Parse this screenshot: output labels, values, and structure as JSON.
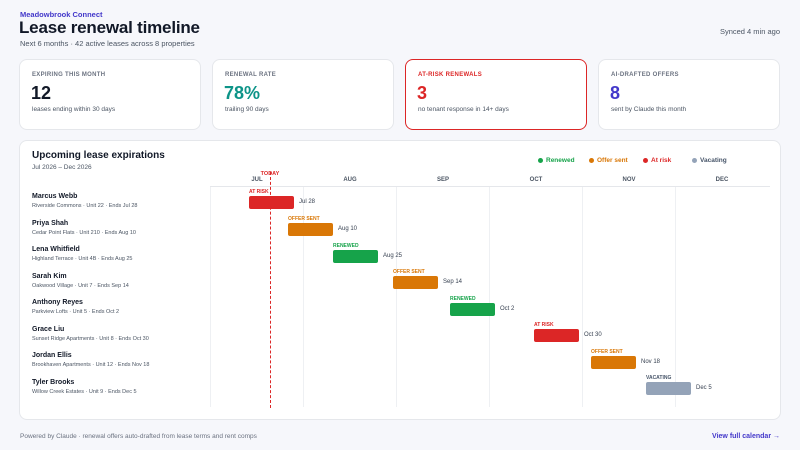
{
  "header": {
    "brand": "Meadowbrook Connect",
    "title": "Lease renewal timeline",
    "subtitle": "Next 6 months · 42 active leases across 8 properties",
    "synced": "Synced 4 min ago"
  },
  "kpis": [
    {
      "label": "EXPIRING THIS MONTH",
      "value": "12",
      "caption": "leases ending within 30 days",
      "color": "#111827"
    },
    {
      "label": "RENEWAL RATE",
      "value": "78%",
      "caption": "trailing 90 days",
      "color": "#0d9488"
    },
    {
      "label": "AT-RISK RENEWALS",
      "value": "3",
      "caption": "no tenant response in 14+ days",
      "color": "#dc2626"
    },
    {
      "label": "AI-DRAFTED OFFERS",
      "value": "8",
      "caption": "sent by Claude this month",
      "color": "#4338ca"
    }
  ],
  "timeline": {
    "title": "Upcoming lease expirations",
    "subtitle": "Jul 2026 – Dec 2026",
    "today_label": "TODAY",
    "months": [
      "JUL",
      "AUG",
      "SEP",
      "OCT",
      "NOV",
      "DEC"
    ],
    "legend": [
      {
        "label": "Renewed",
        "color": "#16a34a"
      },
      {
        "label": "Offer sent",
        "color": "#d97706"
      },
      {
        "label": "At risk",
        "color": "#dc2626"
      },
      {
        "label": "Vacating",
        "color": "#94a3b8"
      }
    ],
    "rows": [
      {
        "name": "Marcus Webb",
        "detail": "Riverside Commons · Unit 22 · Ends Jul 28",
        "status": "AT RISK",
        "color": "#dc2626",
        "end_label": "Jul 28"
      },
      {
        "name": "Priya Shah",
        "detail": "Cedar Point Flats · Unit 210 · Ends Aug 10",
        "status": "OFFER SENT",
        "color": "#d97706",
        "end_label": "Aug 10"
      },
      {
        "name": "Lena Whitfield",
        "detail": "Highland Terrace · Unit 4B · Ends Aug 25",
        "status": "RENEWED",
        "color": "#16a34a",
        "end_label": "Aug 25"
      },
      {
        "name": "Sarah Kim",
        "detail": "Oakwood Village · Unit 7 · Ends Sep 14",
        "status": "OFFER SENT",
        "color": "#d97706",
        "end_label": "Sep 14"
      },
      {
        "name": "Anthony Reyes",
        "detail": "Parkview Lofts · Unit 5 · Ends Oct 2",
        "status": "RENEWED",
        "color": "#16a34a",
        "end_label": "Oct 2"
      },
      {
        "name": "Grace Liu",
        "detail": "Sunset Ridge Apartments · Unit 8 · Ends Oct 30",
        "status": "AT RISK",
        "color": "#dc2626",
        "end_label": "Oct 30"
      },
      {
        "name": "Jordan Ellis",
        "detail": "Brookhaven Apartments · Unit 12 · Ends Nov 18",
        "status": "OFFER SENT",
        "color": "#d97706",
        "end_label": "Nov 18"
      },
      {
        "name": "Tyler Brooks",
        "detail": "Willow Creek Estates · Unit 9 · Ends Dec 5",
        "status": "VACATING",
        "color": "#94a3b8",
        "end_label": "Dec 5"
      }
    ]
  },
  "footer": {
    "note": "Powered by Claude · renewal offers auto-drafted from lease terms and rent comps",
    "link": "View full calendar →"
  }
}
